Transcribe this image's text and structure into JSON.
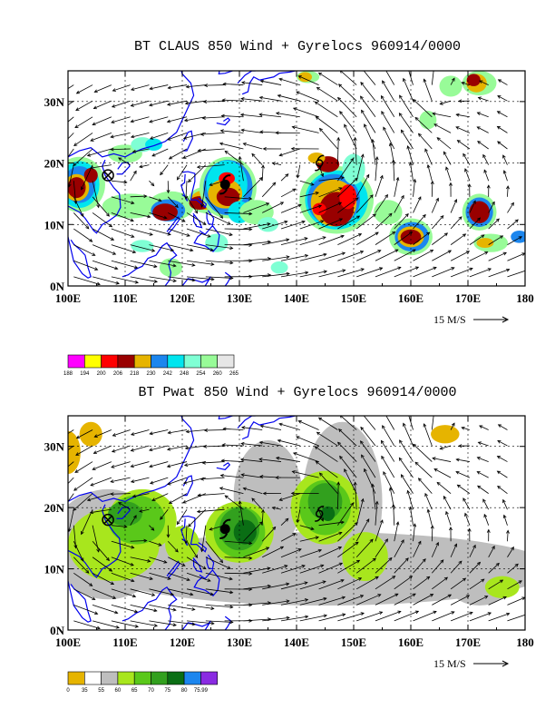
{
  "panels": [
    {
      "title": "BT CLAUS 850 Wind + Gyrelocs 960914/0000",
      "lon_ticks": [
        "100E",
        "110E",
        "120E",
        "130E",
        "140E",
        "150E",
        "160E",
        "170E",
        "180"
      ],
      "lat_ticks": [
        "0N",
        "10N",
        "20N",
        "30N"
      ],
      "reference_vector": "15 M/S",
      "legend": {
        "labels": [
          "188",
          "194",
          "200",
          "206",
          "218",
          "230",
          "242",
          "248",
          "254",
          "260",
          "265"
        ],
        "colors": [
          "#ff00ff",
          "#ffff00",
          "#ff0000",
          "#990000",
          "#e6b400",
          "#1c86ee",
          "#00e5ee",
          "#7fffd4",
          "#98fb98",
          "#e6e6e6"
        ]
      },
      "markers": [
        {
          "type": "gyre-crossed-circle",
          "lon": 107,
          "lat": 18
        },
        {
          "type": "typhoon-symbol",
          "lon": 127.5,
          "lat": 16.5
        },
        {
          "type": "storm-symbol",
          "lon": 144,
          "lat": 20
        }
      ]
    },
    {
      "title": "BT Pwat 850 Wind + Gyrelocs 960914/0000",
      "lon_ticks": [
        "100E",
        "110E",
        "120E",
        "130E",
        "140E",
        "150E",
        "160E",
        "170E",
        "180"
      ],
      "lat_ticks": [
        "0N",
        "10N",
        "20N",
        "30N"
      ],
      "reference_vector": "15 M/S",
      "legend": {
        "labels": [
          "0",
          "35",
          "55",
          "60",
          "65",
          "70",
          "75",
          "80",
          "75.99"
        ],
        "colors": [
          "#e6b400",
          "#ffffff",
          "#bebebe",
          "#a8e61d",
          "#5ac81a",
          "#32a01e",
          "#0a6e14",
          "#1c86ee",
          "#8a2be2"
        ]
      },
      "markers": [
        {
          "type": "gyre-crossed-circle",
          "lon": 107,
          "lat": 18
        },
        {
          "type": "typhoon-symbol",
          "lon": 127.5,
          "lat": 16.5
        },
        {
          "type": "storm-symbol",
          "lon": 144,
          "lat": 19
        }
      ]
    }
  ]
}
